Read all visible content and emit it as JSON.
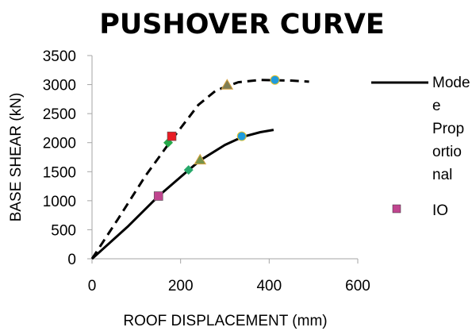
{
  "chart_data": {
    "type": "line",
    "title": "PUSHOVER CURVE",
    "xlabel": "ROOF DISPLACEMENT (mm)",
    "ylabel": "BASE SHEAR (kN)",
    "xlim": [
      0,
      600
    ],
    "ylim": [
      0,
      3500
    ],
    "xticks": [
      "0",
      "200",
      "400",
      "600"
    ],
    "yticks": [
      "0",
      "500",
      "1000",
      "1500",
      "2000",
      "2500",
      "3000",
      "3500"
    ],
    "grid": false,
    "legend_position": "right",
    "series": [
      {
        "name": "Mode Proportional",
        "style": "solid",
        "color": "#000000",
        "points": [
          [
            0,
            0
          ],
          [
            80,
            550
          ],
          [
            150,
            1080
          ],
          [
            220,
            1540
          ],
          [
            245,
            1700
          ],
          [
            300,
            1960
          ],
          [
            340,
            2100
          ],
          [
            380,
            2180
          ],
          [
            410,
            2220
          ]
        ]
      },
      {
        "style": "dashed",
        "color": "#000000",
        "points": [
          [
            0,
            0
          ],
          [
            60,
            700
          ],
          [
            120,
            1420
          ],
          [
            175,
            2000
          ],
          [
            200,
            2250
          ],
          [
            240,
            2650
          ],
          [
            280,
            2900
          ],
          [
            330,
            3040
          ],
          [
            380,
            3080
          ],
          [
            450,
            3070
          ],
          [
            490,
            3050
          ]
        ]
      }
    ],
    "markers": [
      {
        "series": 0,
        "x": 150,
        "y": 1080,
        "shape": "square",
        "color": "#c0458f"
      },
      {
        "series": 0,
        "x": 218,
        "y": 1530,
        "shape": "diamond",
        "color": "#27a86a"
      },
      {
        "series": 0,
        "x": 244,
        "y": 1700,
        "shape": "triangle",
        "color": "#76934a"
      },
      {
        "series": 0,
        "x": 338,
        "y": 2110,
        "shape": "circle",
        "color": "#1f9bdc"
      },
      {
        "series": 1,
        "x": 172,
        "y": 2000,
        "shape": "diamond",
        "color": "#27a84a"
      },
      {
        "series": 1,
        "x": 180,
        "y": 2110,
        "shape": "square",
        "color": "#e81c24"
      },
      {
        "series": 1,
        "x": 305,
        "y": 2990,
        "shape": "triangle",
        "color": "#7f7d52"
      },
      {
        "series": 1,
        "x": 413,
        "y": 3080,
        "shape": "circle",
        "color": "#1f9bdc"
      }
    ],
    "legend": {
      "line_label_lines": [
        "Mode",
        "e",
        "Prop",
        "ortio",
        "nal"
      ],
      "marker_label": "IO",
      "marker_color": "#c0458f"
    }
  }
}
